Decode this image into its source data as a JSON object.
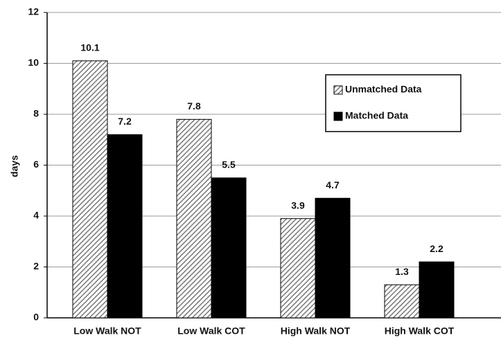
{
  "chart_data": {
    "type": "bar",
    "y_label": "days",
    "categories": [
      "Low Walk NOT",
      "Low Walk COT",
      "High Walk NOT",
      "High Walk COT"
    ],
    "series": [
      {
        "name": "Unmatched Data",
        "color": "#777777",
        "hatch": true,
        "values": [
          10.1,
          7.8,
          3.9,
          1.3
        ]
      },
      {
        "name": "Matched Data",
        "color": "#000000",
        "values": [
          7.2,
          5.5,
          4.7,
          2.2
        ]
      }
    ],
    "ylim": [
      0,
      12
    ],
    "yticks": [
      0,
      2,
      4,
      6,
      8,
      10,
      12
    ],
    "grid": true,
    "legend": "upper right"
  }
}
